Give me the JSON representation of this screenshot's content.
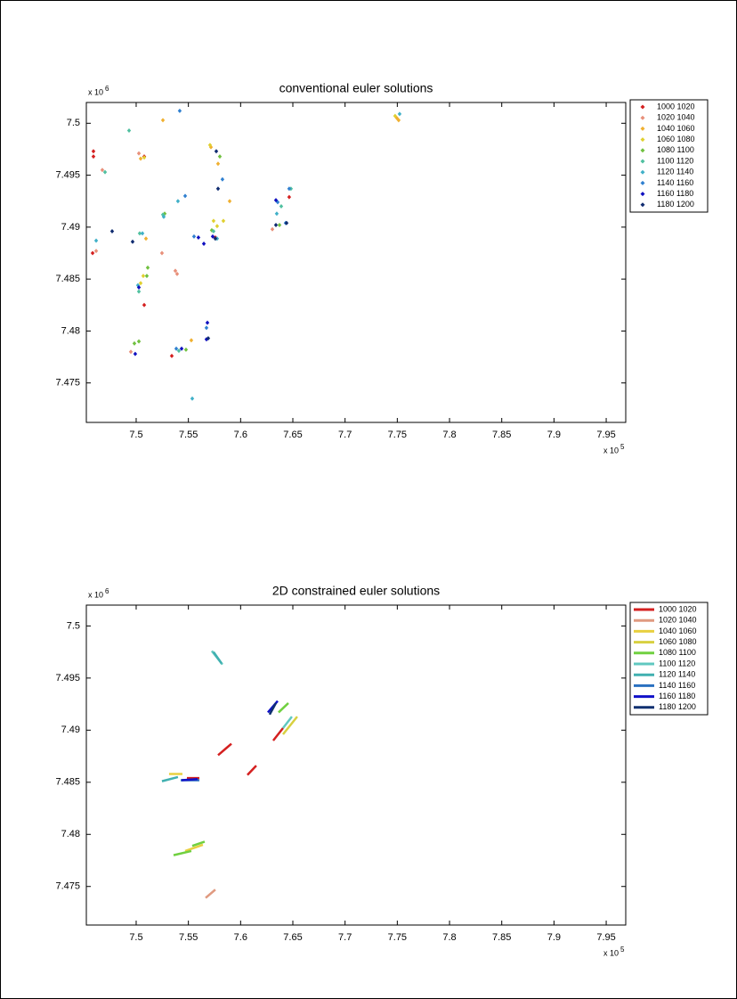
{
  "chart_data": [
    {
      "type": "scatter",
      "title": "conventional euler solutions",
      "marker": "diamond",
      "legend": "outside-right",
      "x_multiplier": {
        "base": "x 10",
        "exponent": "5"
      },
      "y_multiplier": {
        "base": "x 10",
        "exponent": "6"
      },
      "xlim": [
        7.4523,
        7.9687
      ],
      "xticks": [
        7.5,
        7.55,
        7.6,
        7.65,
        7.7,
        7.75,
        7.8,
        7.85,
        7.9,
        7.95
      ],
      "ylim": [
        7.4712,
        7.502
      ],
      "yticks": [
        7.475,
        7.48,
        7.485,
        7.49,
        7.495,
        7.5
      ],
      "series": [
        {
          "name": "1000  1020",
          "color": "#d42020",
          "x": [
            7.4591,
            7.4591,
            7.4583,
            7.5077,
            7.5077,
            7.5341,
            7.6465,
            7.5758
          ],
          "values": [
            7.4973,
            7.4968,
            7.4875,
            7.4968,
            7.4825,
            7.4776,
            7.4929,
            7.489
          ]
        },
        {
          "name": "1020  1040",
          "color": "#e8907a",
          "x": [
            7.4617,
            7.4676,
            7.5026,
            7.4949,
            7.5247,
            7.5375,
            7.5392,
            7.6304
          ],
          "values": [
            7.4877,
            7.4955,
            7.4971,
            7.478,
            7.4875,
            7.4858,
            7.4855,
            7.4898
          ]
        },
        {
          "name": "1040  1060",
          "color": "#f0b030",
          "x": [
            7.5256,
            7.5043,
            7.5716,
            7.5784,
            7.5895,
            7.7496,
            7.7513,
            7.5528,
            7.5094
          ],
          "values": [
            7.5003,
            7.4966,
            7.4977,
            7.4961,
            7.4925,
            7.5005,
            7.5003,
            7.4791,
            7.4889
          ]
        },
        {
          "name": "1060  1080",
          "color": "#e0d030",
          "x": [
            7.5707,
            7.5077,
            7.5741,
            7.5835,
            7.5043,
            7.5068,
            7.7479,
            7.5775
          ],
          "values": [
            7.4979,
            7.4967,
            7.4906,
            7.4906,
            7.4846,
            7.4853,
            7.5007,
            7.4901
          ]
        },
        {
          "name": "1080  1100",
          "color": "#70c040",
          "x": [
            7.4983,
            7.5026,
            7.5111,
            7.5102,
            7.5801,
            7.5724,
            7.6372,
            7.5477,
            7.5273
          ],
          "values": [
            7.4788,
            7.479,
            7.4861,
            7.4853,
            7.4968,
            7.4897,
            7.4902,
            7.4782,
            7.4913
          ]
        },
        {
          "name": "1100  1120",
          "color": "#50c0a0",
          "x": [
            7.4932,
            7.4702,
            7.5256,
            7.5026,
            7.5741,
            7.6389,
            7.6482,
            7.5409,
            7.5034
          ],
          "values": [
            7.4993,
            7.4953,
            7.4912,
            7.4838,
            7.4896,
            7.492,
            7.4937,
            7.4781,
            7.4894
          ]
        },
        {
          "name": "1120  1140",
          "color": "#40b0c8",
          "x": [
            7.4617,
            7.506,
            7.54,
            7.6346,
            7.7522,
            7.5537,
            7.5775,
            7.5017,
            7.5264
          ],
          "values": [
            7.4887,
            7.4894,
            7.4925,
            7.4913,
            7.5009,
            7.4735,
            7.4889,
            7.4844,
            7.491
          ]
        },
        {
          "name": "1140  1160",
          "color": "#3080d0",
          "x": [
            7.5417,
            7.5469,
            7.5826,
            7.6355,
            7.6465,
            7.6431,
            7.5384,
            7.5673,
            7.5554
          ],
          "values": [
            7.5012,
            7.493,
            7.4946,
            7.4924,
            7.4937,
            7.4904,
            7.4783,
            7.4803,
            7.4891
          ]
        },
        {
          "name": "1160  1180",
          "color": "#1010c0",
          "x": [
            7.5026,
            7.5648,
            7.5733,
            7.5682,
            7.5673,
            7.5435,
            7.5596,
            7.6338,
            7.4991
          ],
          "values": [
            7.4842,
            7.4884,
            7.4891,
            7.4808,
            7.4792,
            7.4783,
            7.489,
            7.4926,
            7.4778
          ]
        },
        {
          "name": "1180  1200",
          "color": "#102c70",
          "x": [
            7.477,
            7.4966,
            7.5767,
            7.5784,
            7.644,
            7.569,
            7.5758,
            7.6338
          ],
          "values": [
            7.4896,
            7.4886,
            7.4973,
            7.4937,
            7.4904,
            7.4793,
            7.4889,
            7.4902
          ]
        }
      ]
    },
    {
      "type": "line",
      "title": "2D constrained euler solutions",
      "legend": "outside-right",
      "x_multiplier": {
        "base": "x 10",
        "exponent": "5"
      },
      "y_multiplier": {
        "base": "x 10",
        "exponent": "6"
      },
      "xlim": [
        7.4523,
        7.9687
      ],
      "xticks": [
        7.5,
        7.55,
        7.6,
        7.65,
        7.7,
        7.75,
        7.8,
        7.85,
        7.9,
        7.95
      ],
      "ylim": [
        7.4713,
        7.502
      ],
      "yticks": [
        7.475,
        7.48,
        7.485,
        7.49,
        7.495,
        7.5
      ],
      "series": [
        {
          "name": "1000  1020",
          "color": "#d42020",
          "x": [
            7.5784,
            7.5912,
            null,
            7.6065,
            7.615,
            null,
            7.6312,
            7.6406,
            null,
            7.5486,
            7.5605
          ],
          "values": [
            7.4876,
            7.4887,
            null,
            7.4857,
            7.4866,
            null,
            7.489,
            7.4902,
            null,
            7.4854,
            7.4854
          ]
        },
        {
          "name": "1020  1040",
          "color": "#e09a80",
          "x": [
            7.5665,
            7.5758
          ],
          "values": [
            7.4739,
            7.4747
          ]
        },
        {
          "name": "1040  1060",
          "color": "#e8d040",
          "x": [
            7.5315,
            7.5443,
            null,
            7.5469,
            7.5639
          ],
          "values": [
            7.4858,
            7.4858,
            null,
            7.4784,
            7.479
          ]
        },
        {
          "name": "1060  1080",
          "color": "#d8d040",
          "x": [
            7.6406,
            7.6542
          ],
          "values": [
            7.4896,
            7.4913
          ]
        },
        {
          "name": "1080  1100",
          "color": "#70d040",
          "x": [
            7.5358,
            7.5528,
            null,
            7.5537,
            7.5656,
            null,
            7.6363,
            7.6457
          ],
          "values": [
            7.478,
            7.4784,
            null,
            7.4789,
            7.4793,
            null,
            7.4917,
            7.4926
          ]
        },
        {
          "name": "1100  1120",
          "color": "#60c8c0",
          "x": [
            7.6406,
            7.6491,
            null,
            7.5724,
            7.5826
          ],
          "values": [
            7.4902,
            7.4913,
            null,
            7.4976,
            7.4963
          ]
        },
        {
          "name": "1120  1140",
          "color": "#40b0b0",
          "x": [
            7.5247,
            7.54,
            null,
            7.5741,
            7.5818
          ],
          "values": [
            7.4851,
            7.4855,
            null,
            7.4975,
            7.4964
          ]
        },
        {
          "name": "1140  1160",
          "color": "#2a70c0",
          "x": [
            7.5426,
            7.5605
          ],
          "values": [
            7.4852,
            7.4852
          ]
        },
        {
          "name": "1160  1180",
          "color": "#1010c8",
          "x": [
            7.6261,
            7.6355,
            null,
            7.5435,
            7.5588
          ],
          "values": [
            7.4917,
            7.4928,
            null,
            7.4852,
            7.4853
          ]
        },
        {
          "name": "1180  1200",
          "color": "#103070",
          "x": [
            7.6278,
            7.6338
          ],
          "values": [
            7.4915,
            7.4926
          ]
        }
      ]
    }
  ]
}
